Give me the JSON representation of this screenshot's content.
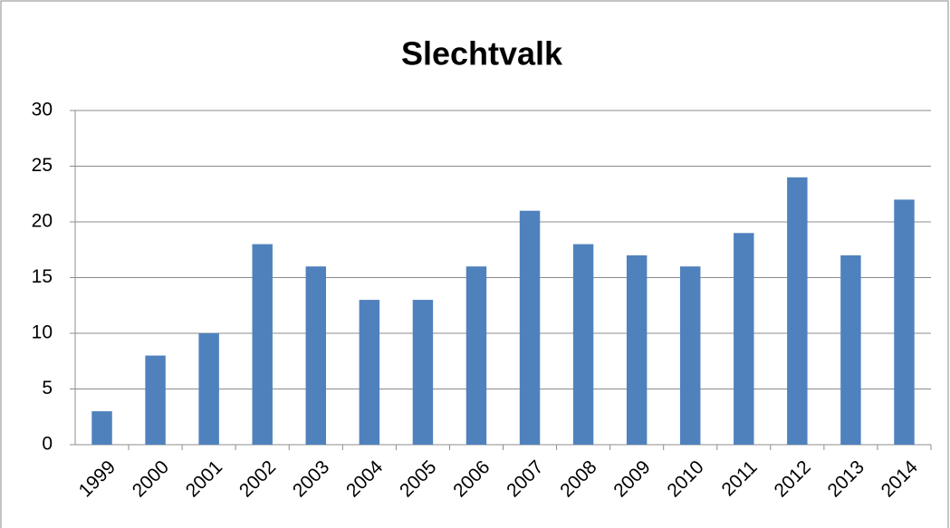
{
  "chart_data": {
    "type": "bar",
    "title": "Slechtvalk",
    "categories": [
      "1999",
      "2000",
      "2001",
      "2002",
      "2003",
      "2004",
      "2005",
      "2006",
      "2007",
      "2008",
      "2009",
      "2010",
      "2011",
      "2012",
      "2013",
      "2014"
    ],
    "values": [
      3,
      8,
      10,
      18,
      16,
      13,
      13,
      16,
      21,
      18,
      17,
      16,
      19,
      24,
      17,
      22
    ],
    "color": "#4f81bd",
    "ylim": [
      0,
      30
    ],
    "yticks": [
      0,
      5,
      10,
      15,
      20,
      25,
      30
    ],
    "grid": true
  }
}
